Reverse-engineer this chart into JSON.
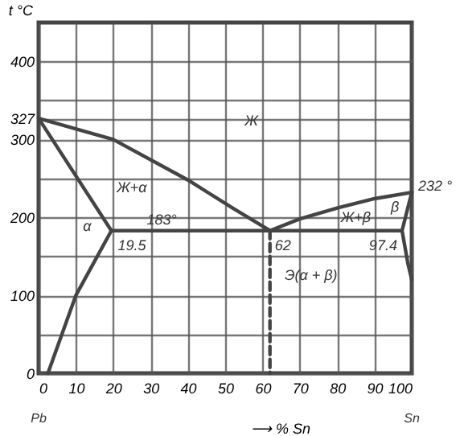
{
  "chart_data": {
    "type": "line",
    "xlabel": "⟶ % Sn",
    "ylabel": "t °C",
    "xlim": [
      0,
      100
    ],
    "xticks": [
      0,
      10,
      20,
      30,
      40,
      50,
      60,
      70,
      80,
      90,
      100
    ],
    "ylim": [
      0,
      450
    ],
    "yticks": [
      0,
      {
        "value": 50,
        "label": null
      },
      100,
      {
        "value": 150,
        "label": null
      },
      200,
      {
        "value": 250,
        "label": null
      },
      300,
      327,
      {
        "value": 350,
        "label": null
      },
      400
    ],
    "grid": true,
    "marker": "none",
    "series": [
      {
        "color": "#444444",
        "x": [
          0,
          20,
          40,
          52,
          62
        ],
        "values": [
          327,
          300,
          248,
          212,
          183
        ]
      },
      {
        "color": "#444444",
        "x": [
          62,
          70,
          80,
          90,
          100
        ],
        "values": [
          183,
          198,
          212,
          224,
          232
        ]
      },
      {
        "color": "#444444",
        "x": [
          0,
          19.5
        ],
        "values": [
          327,
          183
        ]
      },
      {
        "color": "#444444",
        "x": [
          19.5,
          10,
          2.5
        ],
        "values": [
          183,
          100,
          0
        ]
      },
      {
        "color": "#444444",
        "x": [
          19.5,
          97.4
        ],
        "values": [
          183,
          183
        ]
      },
      {
        "color": "#444444",
        "x": [
          100,
          97.4,
          99,
          100
        ],
        "values": [
          232,
          183,
          140,
          120
        ]
      },
      {
        "color": "#444444",
        "x": [
          62,
          62
        ],
        "values": [
          183,
          0
        ],
        "line_style": "dashed"
      }
    ],
    "annotations": [
      "Ж",
      "Ж+α",
      "α",
      "Ж+β",
      "Э(α + β)",
      "β",
      "Pb",
      "Sn",
      {
        "text": "183°",
        "x": 33,
        "y": 183
      },
      {
        "text": "19.5",
        "x": 19.5,
        "y": 183
      },
      {
        "text": "62",
        "x": 62,
        "y": 183
      },
      {
        "text": "97.4",
        "x": 97.4,
        "y": 183
      },
      {
        "text": "232 °",
        "x": 100,
        "y": 232
      }
    ]
  }
}
